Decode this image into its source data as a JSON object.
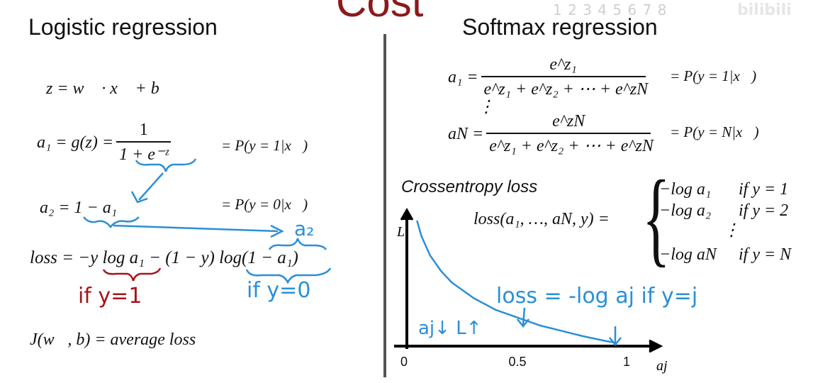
{
  "slide_title": "Cost",
  "watermark": "1 2 3 4 5 6 7 8",
  "bilibili_logo": "bilibili",
  "left": {
    "heading": "Logistic regression",
    "eq_z": "z = w⃗ · x⃗ + b",
    "eq_a1_lhs": "a₁ = g(z) =",
    "eq_a1_num": "1",
    "eq_a1_den": "1 + e⁻ᶻ",
    "eq_a1_prob": "= P(y = 1|x⃗)",
    "eq_a2": "a₂ = 1 − a₁",
    "eq_a2_prob": "= P(y = 0|x⃗)",
    "hand_a2": "a₂",
    "eq_loss": "loss = −y log a₁ − (1 − y) log(1 − a₁)",
    "hand_if_y1": "if y=1",
    "hand_if_y0": "if y=0",
    "eq_cost": "J(w⃗, b) = average loss"
  },
  "right": {
    "heading": "Softmax regression",
    "a1_lhs": "a₁ =",
    "a1_num": "e^z₁",
    "a1_den": "e^z₁ + e^z₂ + ⋯ + e^zN",
    "a1_prob": "= P(y = 1|x⃗)",
    "vdots": "⋮",
    "aN_lhs": "aN =",
    "aN_num": "e^zN",
    "aN_den": "e^z₁ + e^z₂ + ⋯ + e^zN",
    "aN_prob": "= P(y = N|x⃗)",
    "crossentropy_label": "Crossentropy loss",
    "loss_lhs": "loss(a₁, …, aN, y) =",
    "cases": [
      {
        "expr": "−log a₁",
        "cond": "if y = 1"
      },
      {
        "expr": "−log a₂",
        "cond": "if y = 2"
      },
      {
        "expr": "−log aN",
        "cond": "if y = N"
      }
    ],
    "cases_vdots": "⋮",
    "hand_loss_note": "loss = -log aj  if y=j",
    "hand_aj_note": "aj↓ L↑"
  },
  "chart_data": {
    "type": "line",
    "title": "",
    "xlabel": "aj",
    "ylabel": "L",
    "xticks": [
      "0",
      "0.5",
      "1"
    ],
    "series": [
      {
        "x": [
          0.04,
          0.06,
          0.1,
          0.15,
          0.2,
          0.3,
          0.4,
          0.5,
          0.6,
          0.7,
          0.8,
          0.9,
          0.95
        ],
        "y": [
          3.2,
          2.8,
          2.3,
          1.9,
          1.6,
          1.2,
          0.9,
          0.7,
          0.5,
          0.36,
          0.22,
          0.1,
          0.05
        ]
      }
    ],
    "xlim": [
      0,
      1.05
    ],
    "ylim": [
      0,
      3.4
    ],
    "line_color": "#2a8fd8"
  }
}
